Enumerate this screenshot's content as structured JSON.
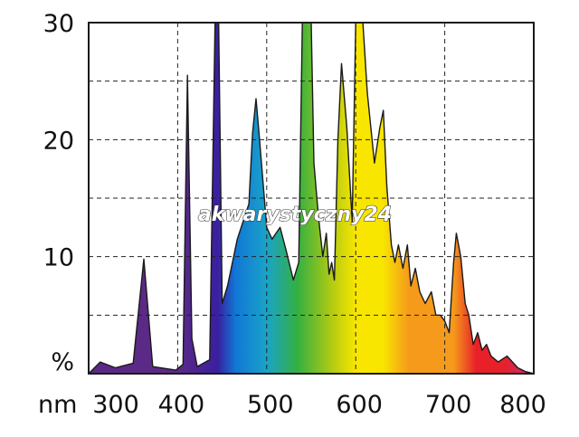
{
  "chart_data": {
    "type": "area",
    "title": "",
    "xlabel": "nm",
    "ylabel": "%",
    "xlim": [
      300,
      800
    ],
    "ylim": [
      0,
      30
    ],
    "x_ticks": [
      300,
      400,
      500,
      600,
      700,
      800
    ],
    "y_ticks": [
      10,
      20,
      30
    ],
    "grid": "dashed",
    "series": [
      {
        "points": [
          [
            300,
            0
          ],
          [
            313,
            1.0
          ],
          [
            330,
            0.5
          ],
          [
            350,
            0.9
          ],
          [
            362,
            9.8
          ],
          [
            372,
            0.6
          ],
          [
            398,
            0.3
          ],
          [
            406,
            0.8
          ],
          [
            411,
            25.5
          ],
          [
            416,
            3.0
          ],
          [
            422,
            0.6
          ],
          [
            436,
            1.2
          ],
          [
            442,
            30
          ],
          [
            446,
            30
          ],
          [
            450,
            6.0
          ],
          [
            456,
            7.5
          ],
          [
            467,
            11.5
          ],
          [
            480,
            14.5
          ],
          [
            484,
            20.5
          ],
          [
            488,
            23.5
          ],
          [
            492,
            20.0
          ],
          [
            500,
            12.5
          ],
          [
            506,
            11.5
          ],
          [
            515,
            12.5
          ],
          [
            522,
            10.5
          ],
          [
            530,
            8.0
          ],
          [
            536,
            9.5
          ],
          [
            540,
            30
          ],
          [
            550,
            30
          ],
          [
            553,
            18.0
          ],
          [
            558,
            13.5
          ],
          [
            563,
            10.0
          ],
          [
            567,
            12.0
          ],
          [
            570,
            8.5
          ],
          [
            573,
            9.5
          ],
          [
            576,
            8.0
          ],
          [
            580,
            20.0
          ],
          [
            584,
            26.5
          ],
          [
            590,
            21.0
          ],
          [
            596,
            13.0
          ],
          [
            600,
            30
          ],
          [
            608,
            30
          ],
          [
            613,
            24.0
          ],
          [
            621,
            18.0
          ],
          [
            627,
            21.0
          ],
          [
            631,
            22.5
          ],
          [
            635,
            16.0
          ],
          [
            640,
            11.0
          ],
          [
            644,
            9.5
          ],
          [
            648,
            11.0
          ],
          [
            653,
            9.0
          ],
          [
            658,
            11.0
          ],
          [
            662,
            7.5
          ],
          [
            667,
            9.0
          ],
          [
            672,
            7.0
          ],
          [
            678,
            6.0
          ],
          [
            685,
            7.0
          ],
          [
            690,
            5.0
          ],
          [
            695,
            5.0
          ],
          [
            700,
            4.5
          ],
          [
            705,
            3.5
          ],
          [
            710,
            9.5
          ],
          [
            713,
            12.0
          ],
          [
            718,
            10.0
          ],
          [
            723,
            6.0
          ],
          [
            727,
            5.0
          ],
          [
            732,
            2.5
          ],
          [
            737,
            3.5
          ],
          [
            742,
            2.0
          ],
          [
            747,
            2.5
          ],
          [
            752,
            1.5
          ],
          [
            760,
            1.0
          ],
          [
            770,
            1.5
          ],
          [
            782,
            0.5
          ],
          [
            790,
            0.2
          ],
          [
            800,
            0
          ]
        ]
      }
    ]
  },
  "labels": {
    "unit_nm": "nm",
    "unit_pct": "%",
    "watermark": "akwarystyczny24"
  },
  "colors": {
    "violet": "#5b2a86",
    "indigo": "#3a1fa0",
    "blue": "#1177d6",
    "cyan": "#1aa3c8",
    "green": "#35b040",
    "yellow_green": "#b8cc10",
    "yellow": "#f8e600",
    "orange": "#f59a1a",
    "red": "#e8202a",
    "magenta": "#c0307a"
  }
}
